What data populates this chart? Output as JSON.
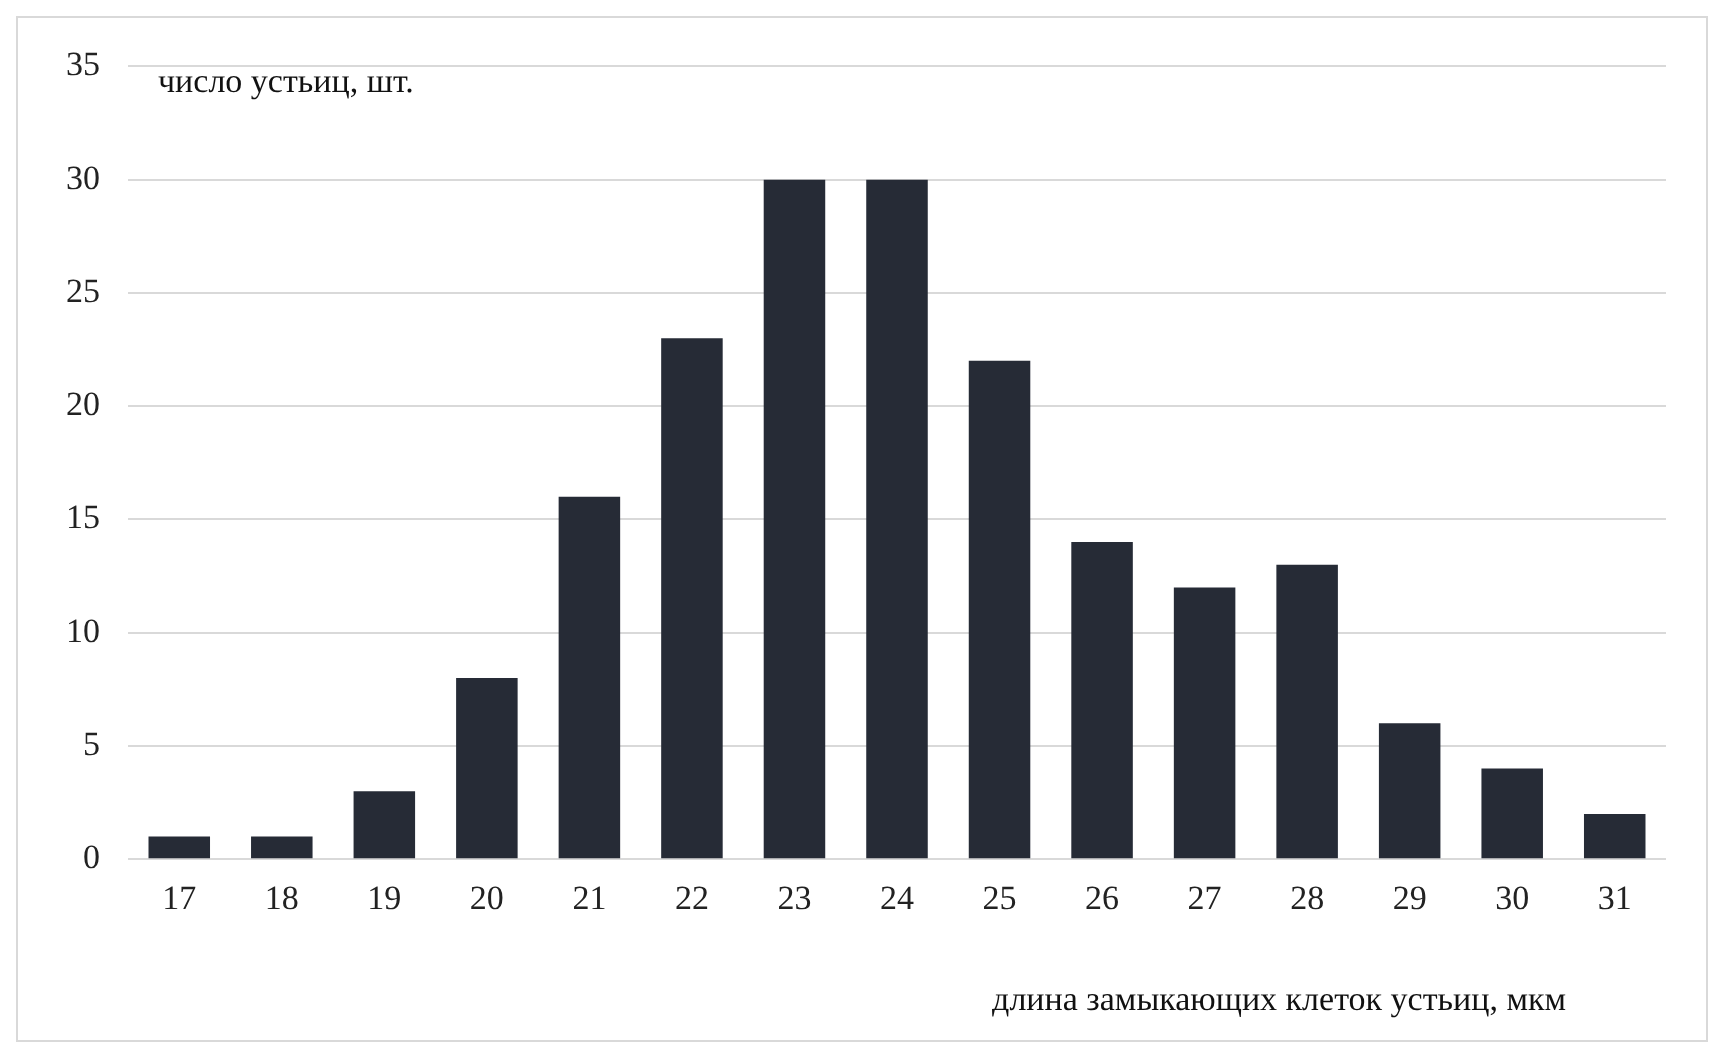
{
  "chart_data": {
    "type": "bar",
    "ylabel": "число устьиц, шт.",
    "xlabel": "длина замыкающих клеток устьиц, мкм",
    "categories": [
      "17",
      "18",
      "19",
      "20",
      "21",
      "22",
      "23",
      "24",
      "25",
      "26",
      "27",
      "28",
      "29",
      "30",
      "31"
    ],
    "values": [
      1,
      1,
      3,
      8,
      16,
      23,
      30,
      30,
      22,
      14,
      12,
      13,
      6,
      4,
      2
    ],
    "color": "#262b36",
    "ylim": [
      0,
      35
    ],
    "yticks": [
      0,
      5,
      10,
      15,
      20,
      25,
      30,
      35
    ],
    "grid": "y",
    "legend": false
  }
}
